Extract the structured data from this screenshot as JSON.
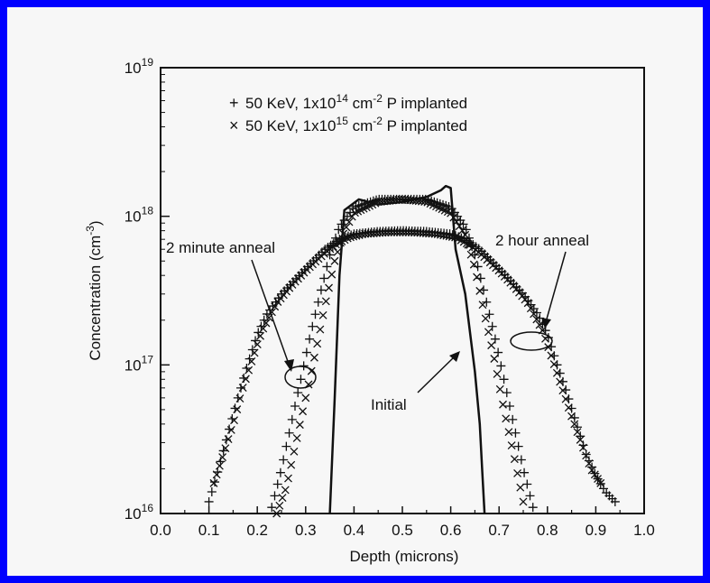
{
  "chart_data": {
    "type": "scatter",
    "title": "",
    "xlabel": "Depth (microns)",
    "ylabel": "Concentration (cm",
    "ylabel_sup": "-3",
    "ylabel_close": ")",
    "xlim": [
      0.0,
      1.0
    ],
    "ylim": [
      1e+16,
      1e+19
    ],
    "yscale": "log",
    "grid": false,
    "x_ticks": [
      {
        "value": 0.0,
        "label": "0.0"
      },
      {
        "value": 0.1,
        "label": "0.1"
      },
      {
        "value": 0.2,
        "label": "0.2"
      },
      {
        "value": 0.3,
        "label": "0.3"
      },
      {
        "value": 0.4,
        "label": "0.4"
      },
      {
        "value": 0.5,
        "label": "0.5"
      },
      {
        "value": 0.6,
        "label": "0.6"
      },
      {
        "value": 0.7,
        "label": "0.7"
      },
      {
        "value": 0.8,
        "label": "0.8"
      },
      {
        "value": 0.9,
        "label": "0.9"
      },
      {
        "value": 1.0,
        "label": "1.0"
      }
    ],
    "y_ticks": [
      {
        "value": 1e+16,
        "base": "10",
        "exp": "16"
      },
      {
        "value": 1e+17,
        "base": "10",
        "exp": "17"
      },
      {
        "value": 1e+18,
        "base": "10",
        "exp": "18"
      },
      {
        "value": 1e+19,
        "base": "10",
        "exp": "19"
      }
    ],
    "legend_position": "top-center",
    "legend": [
      {
        "marker": "+",
        "prefix": "50 KeV, 1x10",
        "exp": "14",
        "mid": " cm",
        "exp2": "-2",
        "suffix": " P implanted"
      },
      {
        "marker": "×",
        "prefix": "50 KeV, 1x10",
        "exp": "15",
        "mid": " cm",
        "exp2": "-2",
        "suffix": " P implanted"
      }
    ],
    "annotations": {
      "two_min": "2 minute anneal",
      "two_hour": "2 hour anneal",
      "initial": "Initial"
    },
    "series": [
      {
        "name": "Initial",
        "style": "line",
        "points": [
          [
            0.35,
            1e+16
          ],
          [
            0.36,
            6e+16
          ],
          [
            0.37,
            4e+17
          ],
          [
            0.38,
            1.1e+18
          ],
          [
            0.41,
            1.3e+18
          ],
          [
            0.45,
            1.2e+18
          ],
          [
            0.5,
            1.25e+18
          ],
          [
            0.55,
            1.35e+18
          ],
          [
            0.58,
            1.5e+18
          ],
          [
            0.59,
            1.6e+18
          ],
          [
            0.6,
            1.55e+18
          ],
          [
            0.61,
            6e+17
          ],
          [
            0.63,
            3e+17
          ],
          [
            0.65,
            9e+16
          ],
          [
            0.66,
            4e+16
          ],
          [
            0.665,
            2e+16
          ],
          [
            0.67,
            1e+16
          ]
        ]
      },
      {
        "name": "50 KeV, 1x10^14 cm^-2 P implanted, 2 minute anneal",
        "style": "+",
        "points": [
          [
            0.23,
            1.1e+16
          ],
          [
            0.25,
            2e+16
          ],
          [
            0.27,
            4e+16
          ],
          [
            0.29,
            8e+16
          ],
          [
            0.31,
            1.6e+17
          ],
          [
            0.33,
            3e+17
          ],
          [
            0.35,
            5.5e+17
          ],
          [
            0.37,
            8.5e+17
          ],
          [
            0.4,
            1.15e+18
          ],
          [
            0.45,
            1.3e+18
          ],
          [
            0.5,
            1.3e+18
          ],
          [
            0.55,
            1.3e+18
          ],
          [
            0.6,
            1.15e+18
          ],
          [
            0.63,
            8.5e+17
          ],
          [
            0.65,
            5.5e+17
          ],
          [
            0.67,
            3e+17
          ],
          [
            0.69,
            1.6e+17
          ],
          [
            0.71,
            8e+16
          ],
          [
            0.73,
            4e+16
          ],
          [
            0.75,
            2e+16
          ],
          [
            0.77,
            1.1e+16
          ]
        ]
      },
      {
        "name": "50 KeV, 1x10^15 cm^-2 P implanted, 2 minute anneal",
        "style": "x",
        "points": [
          [
            0.24,
            1e+16
          ],
          [
            0.26,
            1.5e+16
          ],
          [
            0.28,
            3e+16
          ],
          [
            0.3,
            6e+16
          ],
          [
            0.32,
            1.2e+17
          ],
          [
            0.34,
            2.5e+17
          ],
          [
            0.36,
            5e+17
          ],
          [
            0.38,
            8e+17
          ],
          [
            0.4,
            1.05e+18
          ],
          [
            0.45,
            1.25e+18
          ],
          [
            0.5,
            1.3e+18
          ],
          [
            0.55,
            1.25e+18
          ],
          [
            0.6,
            1.05e+18
          ],
          [
            0.63,
            7.5e+17
          ],
          [
            0.65,
            4.5e+17
          ],
          [
            0.67,
            2.2e+17
          ],
          [
            0.69,
            1.1e+17
          ],
          [
            0.71,
            5e+16
          ],
          [
            0.73,
            2.5e+16
          ],
          [
            0.75,
            1.2e+16
          ]
        ]
      },
      {
        "name": "50 KeV, 1x10^14 cm^-2 P implanted, 2 hour anneal",
        "style": "+",
        "points": [
          [
            0.1,
            1.2e+16
          ],
          [
            0.12,
            2e+16
          ],
          [
            0.14,
            3.5e+16
          ],
          [
            0.16,
            6e+16
          ],
          [
            0.18,
            1e+17
          ],
          [
            0.2,
            1.6e+17
          ],
          [
            0.22,
            2.2e+17
          ],
          [
            0.25,
            3e+17
          ],
          [
            0.28,
            3.8e+17
          ],
          [
            0.31,
            4.8e+17
          ],
          [
            0.34,
            6e+17
          ],
          [
            0.37,
            7e+17
          ],
          [
            0.4,
            7.6e+17
          ],
          [
            0.45,
            7.9e+17
          ],
          [
            0.5,
            8e+17
          ],
          [
            0.55,
            7.9e+17
          ],
          [
            0.6,
            7.6e+17
          ],
          [
            0.63,
            7e+17
          ],
          [
            0.66,
            6e+17
          ],
          [
            0.69,
            4.8e+17
          ],
          [
            0.72,
            3.8e+17
          ],
          [
            0.75,
            3e+17
          ],
          [
            0.78,
            2.2e+17
          ],
          [
            0.8,
            1.6e+17
          ],
          [
            0.82,
            1e+17
          ],
          [
            0.84,
            6.5e+16
          ],
          [
            0.86,
            4e+16
          ],
          [
            0.88,
            2.5e+16
          ],
          [
            0.9,
            1.8e+16
          ],
          [
            0.92,
            1.4e+16
          ],
          [
            0.94,
            1.2e+16
          ]
        ]
      },
      {
        "name": "50 KeV, 1x10^15 cm^-2 P implanted, 2 hour anneal",
        "style": "x",
        "points": [
          [
            0.11,
            1.6e+16
          ],
          [
            0.13,
            2.5e+16
          ],
          [
            0.15,
            4e+16
          ],
          [
            0.17,
            7e+16
          ],
          [
            0.19,
            1.1e+17
          ],
          [
            0.21,
            1.7e+17
          ],
          [
            0.24,
            2.6e+17
          ],
          [
            0.27,
            3.4e+17
          ],
          [
            0.3,
            4.3e+17
          ],
          [
            0.33,
            5.3e+17
          ],
          [
            0.36,
            6.4e+17
          ],
          [
            0.39,
            7.2e+17
          ],
          [
            0.42,
            7.6e+17
          ],
          [
            0.47,
            7.8e+17
          ],
          [
            0.52,
            7.8e+17
          ],
          [
            0.57,
            7.6e+17
          ],
          [
            0.61,
            7.2e+17
          ],
          [
            0.64,
            6.4e+17
          ],
          [
            0.67,
            5.3e+17
          ],
          [
            0.7,
            4.3e+17
          ],
          [
            0.73,
            3.4e+17
          ],
          [
            0.76,
            2.6e+17
          ],
          [
            0.79,
            1.7e+17
          ],
          [
            0.81,
            1.1e+17
          ],
          [
            0.83,
            7e+16
          ],
          [
            0.85,
            4.5e+16
          ],
          [
            0.87,
            3e+16
          ],
          [
            0.89,
            2e+16
          ],
          [
            0.91,
            1.6e+16
          ]
        ]
      }
    ]
  }
}
